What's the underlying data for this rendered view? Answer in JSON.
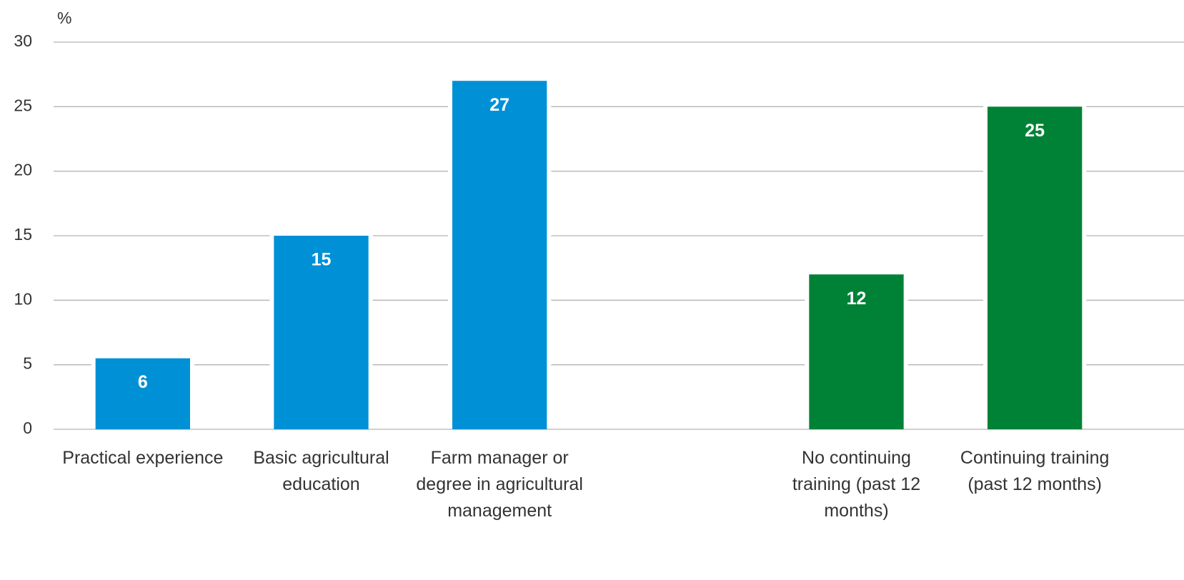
{
  "chart_data": {
    "type": "bar",
    "y_label": "%",
    "categories": [
      "Practical experience",
      "Basic agricultural education",
      "Farm manager or degree in agricultural management",
      null,
      "No continuing training (past 12 months)",
      "Continuing training (past 12 months)"
    ],
    "values": [
      5.5,
      15,
      27,
      null,
      12,
      25
    ],
    "value_labels": [
      "6",
      "15",
      "27",
      null,
      "12",
      "25"
    ],
    "colors": [
      "#0090d6",
      "#0090d6",
      "#0090d6",
      null,
      "#008236",
      "#008236"
    ],
    "ylim": [
      0,
      30
    ],
    "yticks": [
      0,
      5,
      10,
      15,
      20,
      25,
      30
    ],
    "grid": true
  }
}
